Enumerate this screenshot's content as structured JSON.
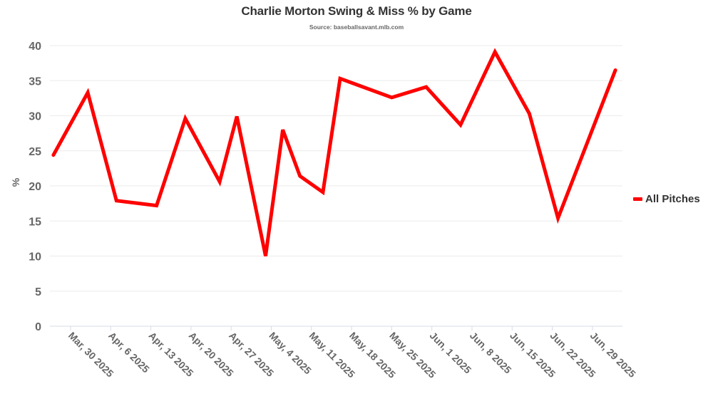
{
  "header": {
    "title": "Charlie Morton Swing & Miss % by Game",
    "subtitle": "Source: baseballsavant.mlb.com"
  },
  "legend": {
    "items": [
      {
        "label": "All Pitches",
        "color": "#ff0000"
      }
    ]
  },
  "chart_data": {
    "type": "line",
    "title": "Charlie Morton Swing & Miss % by Game",
    "subtitle": "Source: baseballsavant.mlb.com",
    "xlabel": "",
    "ylabel": "%",
    "ylim": [
      0,
      40
    ],
    "yticks": [
      0,
      5,
      10,
      15,
      20,
      25,
      30,
      35,
      40
    ],
    "xticks": [
      "Mar, 30 2025",
      "Apr, 6 2025",
      "Apr, 13 2025",
      "Apr, 20 2025",
      "Apr, 27 2025",
      "May, 4 2025",
      "May, 11 2025",
      "May, 18 2025",
      "May, 25 2025",
      "Jun, 1 2025",
      "Jun, 8 2025",
      "Jun, 15 2025",
      "Jun, 22 2025",
      "Jun, 29 2025"
    ],
    "grid": true,
    "legend_position": "right",
    "x": [
      "2025-03-27",
      "2025-04-02",
      "2025-04-07",
      "2025-04-14",
      "2025-04-19",
      "2025-04-25",
      "2025-04-28",
      "2025-05-03",
      "2025-05-06",
      "2025-05-09",
      "2025-05-13",
      "2025-05-16",
      "2025-05-25",
      "2025-05-31",
      "2025-06-06",
      "2025-06-12",
      "2025-06-18",
      "2025-06-23",
      "2025-07-03"
    ],
    "series": [
      {
        "name": "All Pitches",
        "color": "#ff0000",
        "values": [
          24.4,
          33.3,
          17.9,
          17.2,
          29.6,
          20.6,
          29.9,
          10.0,
          28.0,
          21.4,
          19.1,
          35.3,
          32.6,
          34.1,
          28.7,
          39.1,
          30.3,
          15.4,
          36.5
        ]
      }
    ]
  }
}
